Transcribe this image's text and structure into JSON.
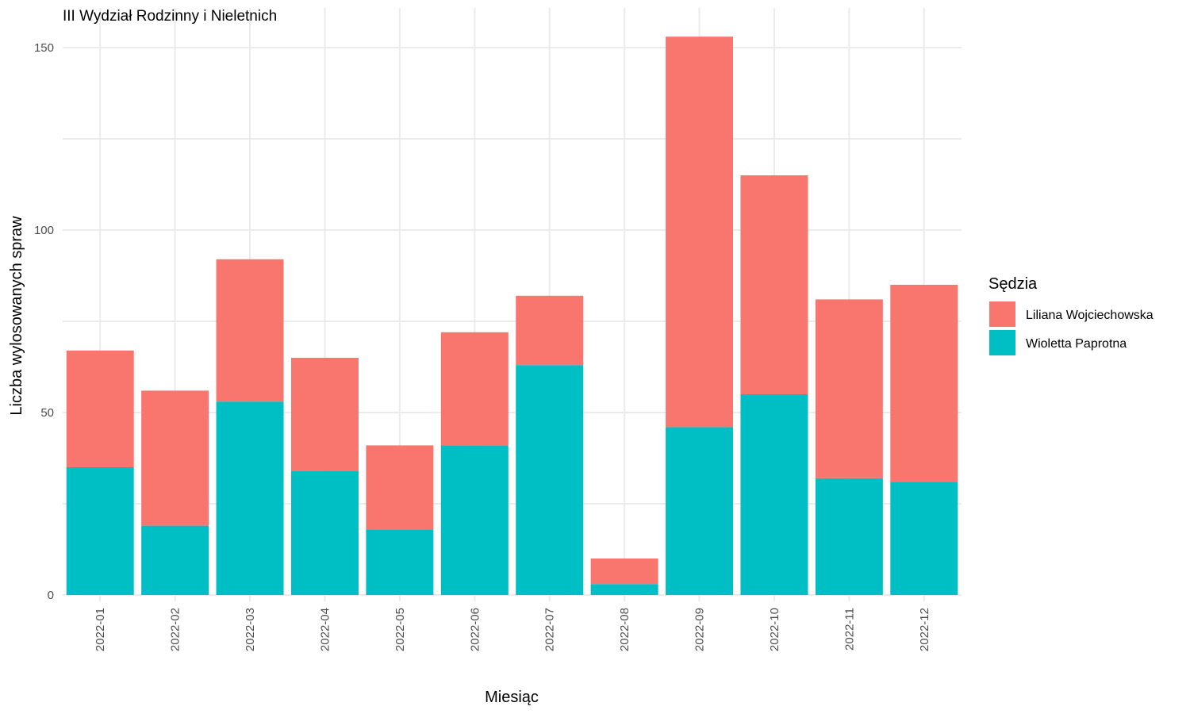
{
  "chart_data": {
    "type": "bar",
    "stacked": true,
    "title": "III Wydział Rodzinny i Nieletnich",
    "xlabel": "Miesiąc",
    "ylabel": "Liczba wylosowanych spraw",
    "ylim": [
      0,
      160
    ],
    "yticks": [
      0,
      50,
      100,
      150
    ],
    "grid": true,
    "legend_position": "right",
    "legend_title": "Sędzia",
    "categories": [
      "2022-01",
      "2022-02",
      "2022-03",
      "2022-04",
      "2022-05",
      "2022-06",
      "2022-07",
      "2022-08",
      "2022-09",
      "2022-10",
      "2022-11",
      "2022-12"
    ],
    "series": [
      {
        "name": "Wioletta Paprotna",
        "color": "#00BFC4",
        "values": [
          35,
          19,
          53,
          34,
          18,
          41,
          63,
          3,
          46,
          55,
          32,
          31
        ]
      },
      {
        "name": "Liliana Wojciechowska",
        "color": "#F8766D",
        "values": [
          32,
          37,
          39,
          31,
          23,
          31,
          19,
          7,
          107,
          60,
          49,
          54
        ]
      }
    ],
    "legend_order": [
      "Liliana Wojciechowska",
      "Wioletta Paprotna"
    ]
  }
}
